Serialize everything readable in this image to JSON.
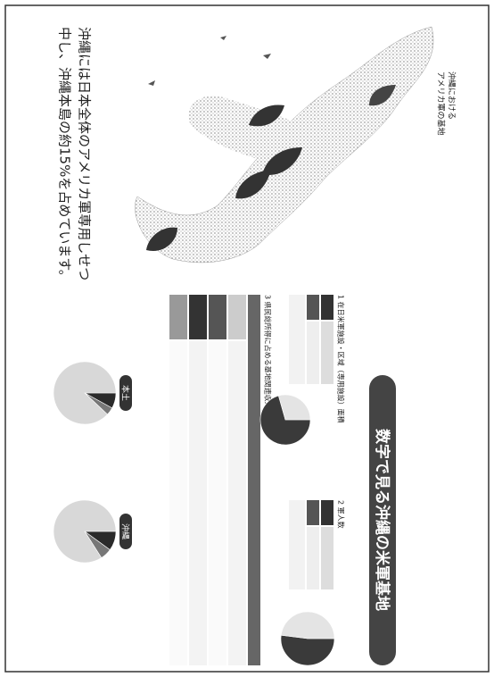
{
  "map": {
    "label": [
      "沖縄における",
      "アメリカ軍の基地"
    ]
  },
  "body": [
    "沖縄には日本全体のアメリカ軍専用しせつ",
    "中し、沖縄本島の約15%を占めています。"
  ],
  "title": "数字で見る沖縄の米軍基地",
  "sections": [
    {
      "heading": "1 在日米軍施設・区域（専用施設）面積",
      "pie": {
        "type": "pie",
        "values": [
          70.6,
          29.4
        ],
        "colors": [
          "#3a3a3a",
          "#e4e4e4"
        ]
      }
    },
    {
      "heading": "2 軍人数",
      "pie": {
        "type": "pie",
        "values": [
          52,
          48
        ],
        "colors": [
          "#3a3a3a",
          "#e4e4e4"
        ]
      }
    },
    {
      "heading": "3 県民総所得に占める基地関連収入"
    }
  ],
  "comparison": [
    {
      "label": "本土",
      "pie": {
        "type": "pie",
        "values": [
          8,
          4,
          88
        ],
        "colors": [
          "#2a2a2a",
          "#777",
          "#d8d8d8"
        ]
      }
    },
    {
      "label": "沖縄",
      "pie": {
        "type": "pie",
        "values": [
          10,
          6,
          84
        ],
        "colors": [
          "#2a2a2a",
          "#777",
          "#d8d8d8"
        ]
      }
    }
  ]
}
